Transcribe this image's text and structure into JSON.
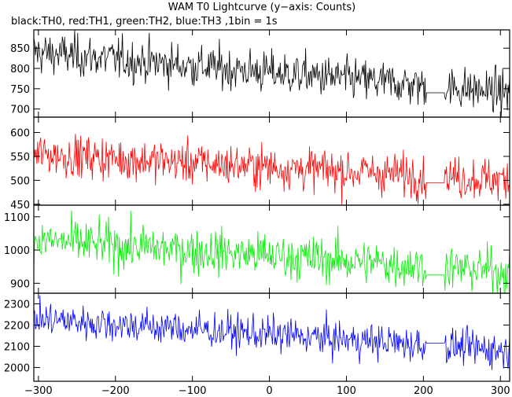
{
  "chart_data": {
    "type": "line",
    "title": "WAM T0 Lightcurve (y−axis: Counts)",
    "subtitle": "black:TH0, red:TH1, green:TH2, blue:TH3 ,1bin = 1s",
    "xlabel": "",
    "x_range": [
      -306,
      312
    ],
    "x_ticks": [
      -300,
      -200,
      -100,
      0,
      100,
      200,
      300
    ],
    "gap": {
      "x_start": 204,
      "x_end": 227
    },
    "grid": false,
    "panels": [
      {
        "series": "TH0",
        "color": "#000000",
        "ylim": [
          680,
          895
        ],
        "y_ticks": [
          700,
          750,
          800,
          850
        ],
        "level_start": 840,
        "level_end": 740,
        "noise": 26,
        "gap_level": 740
      },
      {
        "series": "TH1",
        "color": "#ff0000",
        "ylim": [
          448,
          632
        ],
        "y_ticks": [
          450,
          500,
          550,
          600
        ],
        "level_start": 555,
        "level_end": 500,
        "noise": 22,
        "gap_level": 495
      },
      {
        "series": "TH2",
        "color": "#00ee00",
        "ylim": [
          870,
          1135
        ],
        "y_ticks": [
          900,
          1000,
          1100
        ],
        "level_start": 1030,
        "level_end": 935,
        "noise": 34,
        "gap_level": 925
      },
      {
        "series": "TH3",
        "color": "#0000ff",
        "ylim": [
          1935,
          2350
        ],
        "y_ticks": [
          2000,
          2100,
          2200,
          2300
        ],
        "level_start": 2230,
        "level_end": 2080,
        "noise": 42,
        "gap_level": 2115
      }
    ]
  }
}
